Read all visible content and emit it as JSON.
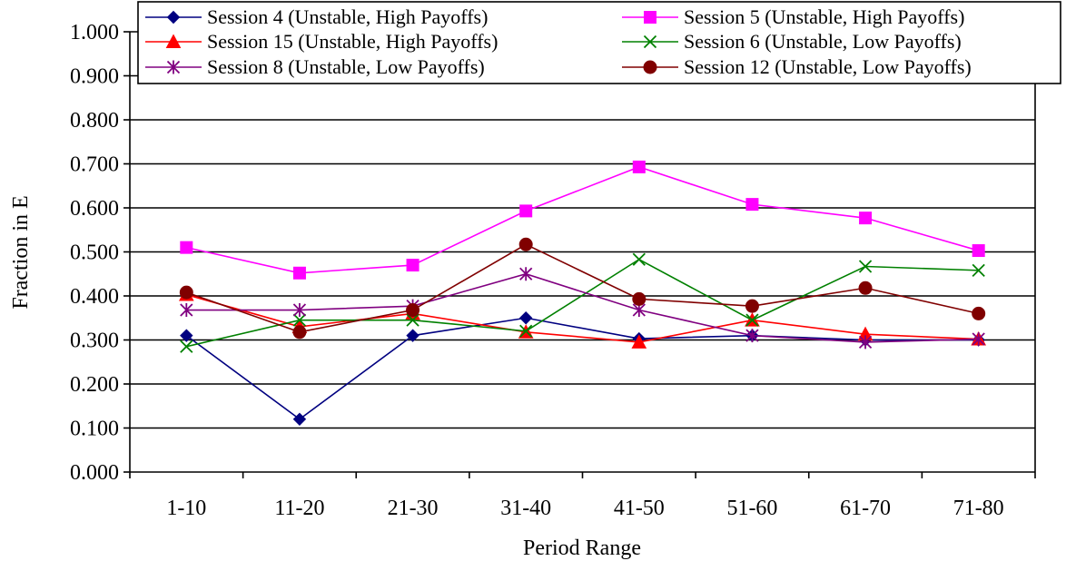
{
  "chart_data": {
    "type": "line",
    "xlabel": "Period Range",
    "ylabel": "Fraction in E",
    "ylim": [
      0,
      1
    ],
    "yticks": [
      "0.000",
      "0.100",
      "0.200",
      "0.300",
      "0.400",
      "0.500",
      "0.600",
      "0.700",
      "0.800",
      "0.900",
      "1.000"
    ],
    "categories": [
      "1-10",
      "11-20",
      "21-30",
      "31-40",
      "41-50",
      "51-60",
      "61-70",
      "71-80"
    ],
    "grid": "horizontal",
    "legend_position": "top",
    "series": [
      {
        "name": "Session 4 (Unstable, High Payoffs)",
        "color": "#000080",
        "marker": "diamond",
        "values": [
          0.31,
          0.12,
          0.31,
          0.35,
          0.303,
          0.31,
          0.3,
          0.3
        ]
      },
      {
        "name": "Session 5 (Unstable, High Payoffs)",
        "color": "#FF00FF",
        "marker": "square",
        "values": [
          0.51,
          0.452,
          0.47,
          0.593,
          0.693,
          0.608,
          0.577,
          0.503
        ]
      },
      {
        "name": "Session 15 (Unstable, High Payoffs)",
        "color": "#FF0000",
        "marker": "triangle",
        "values": [
          0.403,
          0.33,
          0.36,
          0.318,
          0.295,
          0.345,
          0.313,
          0.302
        ]
      },
      {
        "name": "Session 6 (Unstable, Low Payoffs)",
        "color": "#008000",
        "marker": "x",
        "values": [
          0.285,
          0.345,
          0.345,
          0.32,
          0.483,
          0.345,
          0.467,
          0.458
        ]
      },
      {
        "name": "Session 8 (Unstable, Low Payoffs)",
        "color": "#800080",
        "marker": "star",
        "values": [
          0.368,
          0.368,
          0.377,
          0.45,
          0.368,
          0.31,
          0.295,
          0.302
        ]
      },
      {
        "name": "Session 12 (Unstable, Low Payoffs)",
        "color": "#800000",
        "marker": "circle",
        "values": [
          0.408,
          0.318,
          0.368,
          0.517,
          0.393,
          0.377,
          0.418,
          0.36
        ]
      }
    ]
  }
}
